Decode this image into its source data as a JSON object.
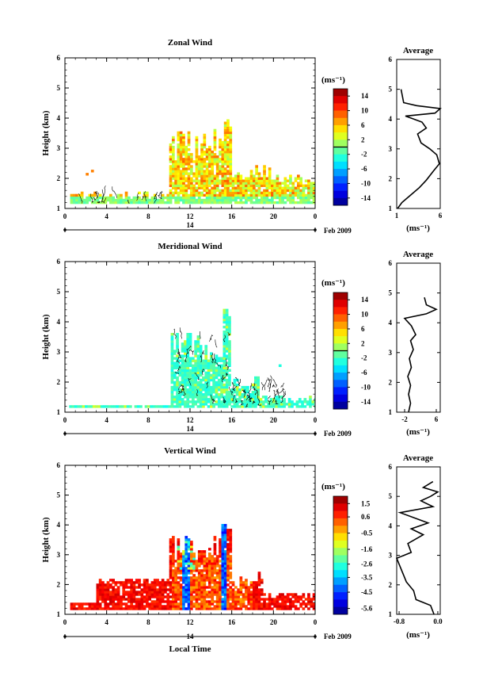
{
  "footer_label": "Local Time",
  "chart_data": [
    {
      "type": "heatmap",
      "title": "Zonal Wind",
      "ylabel": "Height (km)",
      "xticks": [
        "0",
        "4",
        "8",
        "12",
        "16",
        "20",
        "0"
      ],
      "xlim": [
        0,
        24
      ],
      "yticks": [
        "1",
        "2",
        "3",
        "4",
        "5",
        "6"
      ],
      "ylim": [
        1,
        6
      ],
      "date_day": "14",
      "date_label": "Feb 2009",
      "colorbar": {
        "unit": "(ms⁻¹)",
        "ticks": [
          "14",
          "10",
          "6",
          "2",
          "-2",
          "-6",
          "-10",
          "-14"
        ],
        "range": [
          -16,
          16
        ],
        "zero_line": 0
      },
      "profile": {
        "title": "Average",
        "xticks": [
          "1",
          "6"
        ],
        "xlim": [
          1,
          6
        ],
        "xlabel": "(ms⁻¹)",
        "points": [
          [
            1.1,
            1.0
          ],
          [
            1.6,
            1.2
          ],
          [
            2.6,
            1.45
          ],
          [
            3.6,
            1.7
          ],
          [
            4.4,
            1.95
          ],
          [
            5.2,
            2.25
          ],
          [
            5.9,
            2.5
          ],
          [
            5.6,
            2.8
          ],
          [
            4.8,
            3.0
          ],
          [
            3.8,
            3.2
          ],
          [
            3.4,
            3.5
          ],
          [
            4.4,
            3.7
          ],
          [
            3.9,
            3.9
          ],
          [
            2.0,
            4.1
          ],
          [
            5.4,
            4.2
          ],
          [
            6.0,
            4.35
          ],
          [
            3.3,
            4.45
          ],
          [
            1.8,
            4.55
          ],
          [
            1.5,
            5.0
          ]
        ]
      }
    },
    {
      "type": "heatmap",
      "title": "Meridional Wind",
      "ylabel": "Height (km)",
      "xticks": [
        "0",
        "4",
        "8",
        "12",
        "16",
        "20",
        "0"
      ],
      "xlim": [
        0,
        24
      ],
      "yticks": [
        "1",
        "2",
        "3",
        "4",
        "5",
        "6"
      ],
      "ylim": [
        1,
        6
      ],
      "date_day": "14",
      "date_label": "Feb 2009",
      "colorbar": {
        "unit": "(ms⁻¹)",
        "ticks": [
          "14",
          "10",
          "6",
          "2",
          "-2",
          "-6",
          "-10",
          "-14"
        ],
        "range": [
          -16,
          16
        ],
        "zero_line": 0
      },
      "profile": {
        "title": "Average",
        "xticks": [
          "-2",
          "6"
        ],
        "xlim": [
          -4,
          7
        ],
        "xlabel": "(ms⁻¹)",
        "points": [
          [
            -1.0,
            1.0
          ],
          [
            -0.5,
            1.3
          ],
          [
            -1.0,
            1.6
          ],
          [
            -0.5,
            1.9
          ],
          [
            -1.2,
            2.2
          ],
          [
            -0.3,
            2.5
          ],
          [
            -0.8,
            2.8
          ],
          [
            0.2,
            3.1
          ],
          [
            -0.5,
            3.4
          ],
          [
            0.8,
            3.6
          ],
          [
            -0.3,
            3.9
          ],
          [
            -2.0,
            4.15
          ],
          [
            3.5,
            4.3
          ],
          [
            6.0,
            4.45
          ],
          [
            3.5,
            4.6
          ],
          [
            3.0,
            4.85
          ]
        ]
      }
    },
    {
      "type": "heatmap",
      "title": "Vertical Wind",
      "ylabel": "Height (km)",
      "xticks": [
        "0",
        "4",
        "8",
        "12",
        "16",
        "20",
        "0"
      ],
      "xlim": [
        0,
        24
      ],
      "yticks": [
        "1",
        "2",
        "3",
        "4",
        "5",
        "6"
      ],
      "ylim": [
        1,
        6
      ],
      "date_day": "14",
      "date_label": "Feb 2009",
      "colorbar": {
        "unit": "(ms⁻¹)",
        "ticks": [
          "1.5",
          "0.6",
          "-0.5",
          "-1.6",
          "-2.6",
          "-3.5",
          "-4.5",
          "-5.6"
        ],
        "range": [
          -6.0,
          2.0
        ]
      },
      "profile": {
        "title": "Average",
        "xticks": [
          "-0.8",
          "0.0"
        ],
        "xlim": [
          -0.85,
          0.05
        ],
        "xlabel": "(ms⁻¹)",
        "points": [
          [
            -0.08,
            1.0
          ],
          [
            -0.15,
            1.3
          ],
          [
            -0.45,
            1.5
          ],
          [
            -0.5,
            1.8
          ],
          [
            -0.65,
            2.1
          ],
          [
            -0.75,
            2.5
          ],
          [
            -0.85,
            2.9
          ],
          [
            -0.55,
            3.1
          ],
          [
            -0.62,
            3.4
          ],
          [
            -0.3,
            3.7
          ],
          [
            -0.55,
            3.9
          ],
          [
            -0.2,
            4.1
          ],
          [
            -0.78,
            4.45
          ],
          [
            -0.1,
            4.65
          ],
          [
            -0.35,
            4.85
          ],
          [
            -0.15,
            5.0
          ],
          [
            0.0,
            5.15
          ],
          [
            -0.3,
            5.3
          ],
          [
            -0.1,
            5.5
          ]
        ]
      }
    }
  ]
}
